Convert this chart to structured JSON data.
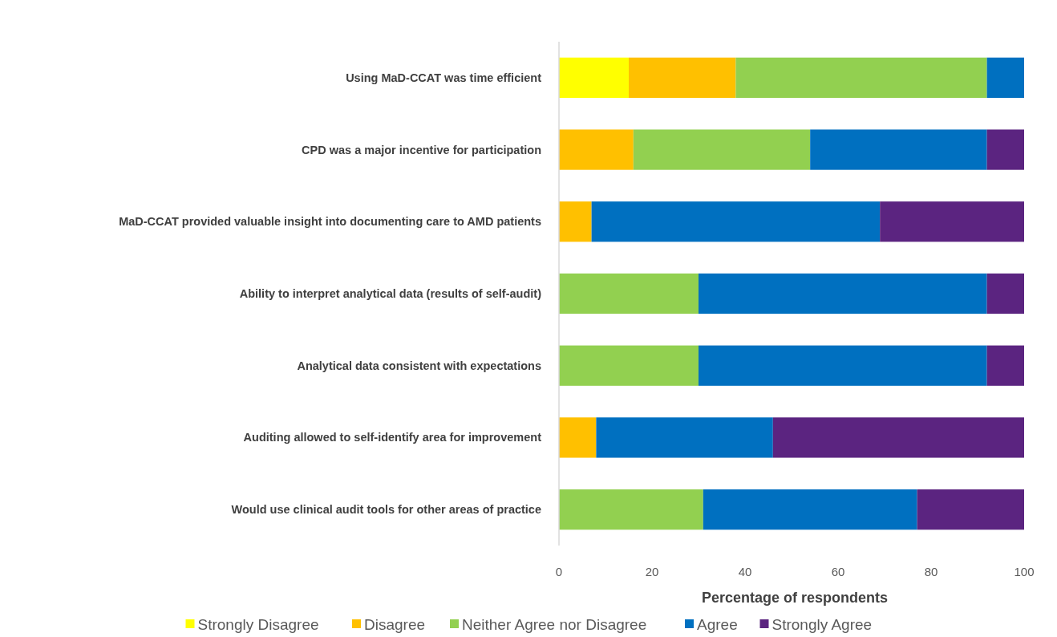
{
  "chart_data": {
    "type": "bar",
    "orientation": "horizontal",
    "stacked": true,
    "categories": [
      "Using MaD-CCAT was time efficient",
      "CPD was a major incentive for participation",
      "MaD-CCAT provided valuable insight into documenting care to AMD patients",
      "Ability to interpret analytical data (results of self-audit)",
      "Analytical data consistent with expectations",
      "Auditing allowed to self-identify area for improvement",
      "Would use clinical audit tools for other areas of practice"
    ],
    "series": [
      {
        "name": "Strongly Disagree",
        "color": "#ffff00",
        "values": [
          15,
          null,
          null,
          null,
          null,
          null,
          null
        ]
      },
      {
        "name": "Disagree",
        "color": "#ffc000",
        "values": [
          23,
          16,
          7,
          null,
          null,
          8,
          null
        ]
      },
      {
        "name": "Neither Agree nor Disagree",
        "color": "#92d050",
        "values": [
          54,
          38,
          null,
          30,
          30,
          null,
          31
        ]
      },
      {
        "name": "Agree",
        "color": "#0070c0",
        "values": [
          8,
          38,
          62,
          62,
          62,
          38,
          46
        ]
      },
      {
        "name": "Strongly Agree",
        "color": "#5b2480",
        "values": [
          null,
          8,
          31,
          8,
          8,
          54,
          23
        ]
      }
    ],
    "xlim": [
      0,
      100
    ],
    "xticks": [
      0,
      20,
      40,
      60,
      80,
      100
    ],
    "xlabel": "Percentage of respondents",
    "legend": "bottom",
    "grid": false
  }
}
